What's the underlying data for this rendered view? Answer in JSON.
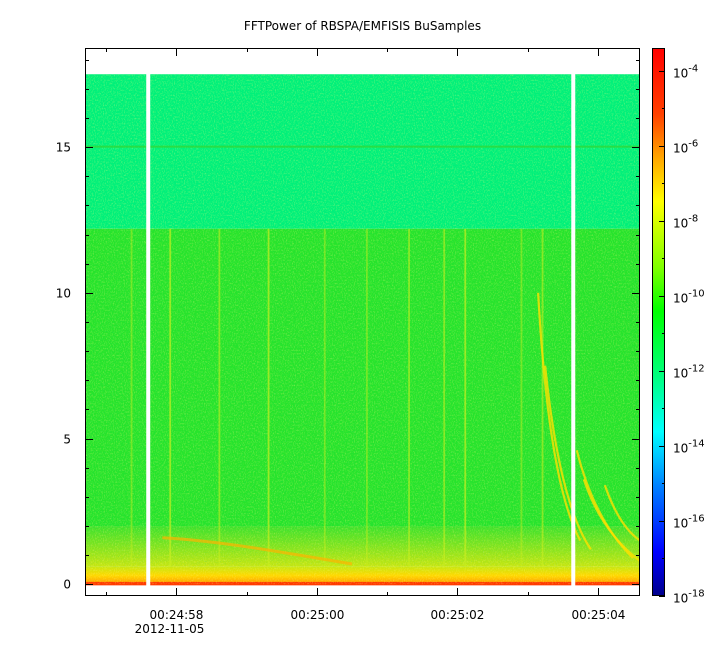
{
  "chart_data": {
    "type": "heatmap",
    "title": "FFTPower of RBSPA/EMFISIS  BuSamples",
    "xlabel": "",
    "ylabel": "",
    "x_range": [
      "00:24:56.7",
      "00:25:04.6"
    ],
    "y_range": [
      -0.4,
      18.4
    ],
    "x_ticks": [
      {
        "value": "00:24:58",
        "seconds": 58.0,
        "label": "00:24:58",
        "label2": "2012-11-05"
      },
      {
        "value": "00:25:00",
        "seconds": 60.0,
        "label": "00:25:00",
        "label2": ""
      },
      {
        "value": "00:25:02",
        "seconds": 62.0,
        "label": "00:25:02",
        "label2": ""
      },
      {
        "value": "00:25:04",
        "seconds": 64.0,
        "label": "00:25:04",
        "label2": ""
      }
    ],
    "x_minor_ticks_seconds": [
      57.0,
      59.0,
      61.0,
      63.0
    ],
    "y_ticks": [
      0,
      5,
      10,
      15
    ],
    "y_data_max": 17.5,
    "gaps_seconds": [
      57.6,
      63.65
    ],
    "colorbar": {
      "scale": "log",
      "range": [
        1e-18,
        0.0001
      ],
      "ticks": [
        {
          "base": "10",
          "exp": "-4",
          "value": 0.0001
        },
        {
          "base": "10",
          "exp": "-6",
          "value": 1e-06
        },
        {
          "base": "10",
          "exp": "-8",
          "value": 1e-08
        },
        {
          "base": "10",
          "exp": "-10",
          "value": 1e-10
        },
        {
          "base": "10",
          "exp": "-12",
          "value": 1e-12
        },
        {
          "base": "10",
          "exp": "-14",
          "value": 1e-14
        },
        {
          "base": "10",
          "exp": "-16",
          "value": 1e-16
        },
        {
          "base": "10",
          "exp": "-18",
          "value": 1e-18
        }
      ],
      "colors": [
        "#00008b",
        "#0000ff",
        "#0080ff",
        "#00ffff",
        "#00ff80",
        "#00ff00",
        "#80ff00",
        "#ffff00",
        "#ffa500",
        "#ff4000",
        "#ff0000",
        "#e00000"
      ]
    },
    "background_levels": [
      {
        "y_range": [
          12.2,
          17.5
        ],
        "log_power": -12.6,
        "color": "#00f07a"
      },
      {
        "y_range": [
          2.0,
          12.2
        ],
        "log_power": -10.4,
        "color": "#27e42a"
      },
      {
        "y_range": [
          0.6,
          2.0
        ],
        "log_power": -9.2,
        "color": "#a8e20f"
      },
      {
        "y_range": [
          0.0,
          0.6
        ],
        "log_power": -8.0,
        "color": "#ffc800"
      }
    ],
    "grid": false,
    "legend": "colorbar-right"
  }
}
